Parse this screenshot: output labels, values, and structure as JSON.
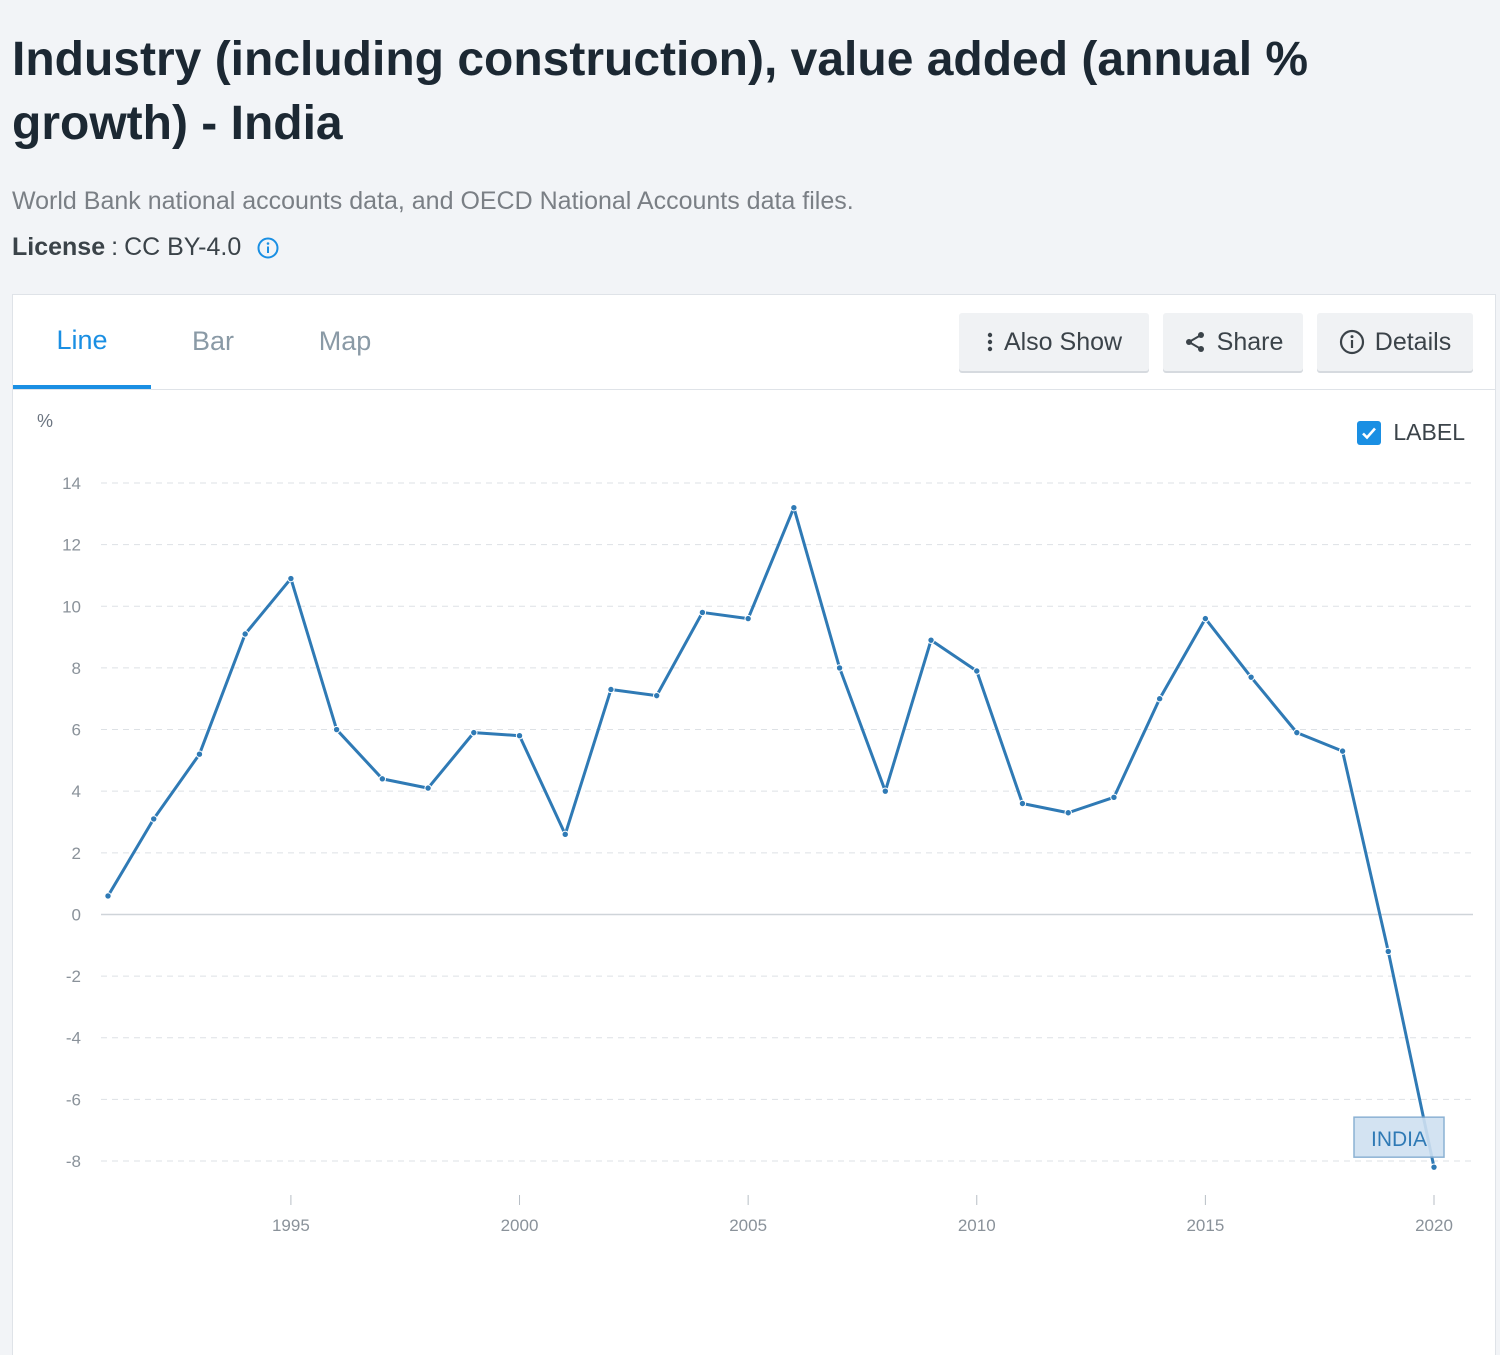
{
  "header": {
    "title": "Industry (including construction), value added (annual % growth) - India",
    "source": "World Bank national accounts data, and OECD National Accounts data files.",
    "license_label": "License",
    "license_sep": ":",
    "license_value": "CC BY-4.0"
  },
  "tabs": [
    {
      "label": "Line",
      "active": true
    },
    {
      "label": "Bar",
      "active": false
    },
    {
      "label": "Map",
      "active": false
    }
  ],
  "toolbar": {
    "also_show_label": "Also Show",
    "share_label": "Share",
    "details_label": "Details"
  },
  "label_toggle": {
    "label": "LABEL",
    "checked": true
  },
  "colors": {
    "accent": "#1a8fe3",
    "line": "#2f7ab5",
    "label_bg": "#cfe1f1"
  },
  "chart_data": {
    "type": "line",
    "ylabel": "%",
    "ylim": [
      -8,
      14
    ],
    "yticks": [
      14,
      12,
      10,
      8,
      6,
      4,
      2,
      0,
      -2,
      -4,
      -6,
      -8
    ],
    "xticks": [
      1995,
      2000,
      2005,
      2010,
      2015,
      2020
    ],
    "xlim": [
      1991,
      2020
    ],
    "grid": true,
    "series": [
      {
        "name": "INDIA",
        "x": [
          1991,
          1992,
          1993,
          1994,
          1995,
          1996,
          1997,
          1998,
          1999,
          2000,
          2001,
          2002,
          2003,
          2004,
          2005,
          2006,
          2007,
          2008,
          2009,
          2010,
          2011,
          2012,
          2013,
          2014,
          2015,
          2016,
          2017,
          2018,
          2019,
          2020
        ],
        "values": [
          0.6,
          3.1,
          5.2,
          9.1,
          10.9,
          6.0,
          4.4,
          4.1,
          5.9,
          5.8,
          2.6,
          7.3,
          7.1,
          9.8,
          9.6,
          13.2,
          8.0,
          4.0,
          8.9,
          7.9,
          3.6,
          3.3,
          3.8,
          7.0,
          9.6,
          7.7,
          5.9,
          5.3,
          -1.2,
          -8.2
        ]
      }
    ]
  }
}
